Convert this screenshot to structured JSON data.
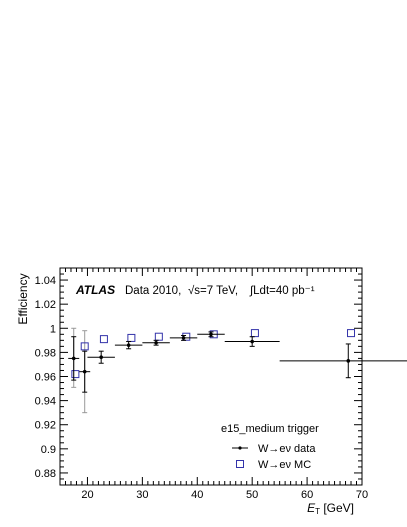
{
  "chart_data": {
    "type": "scatter",
    "title": "",
    "xlabel": "E_T [GeV]",
    "xlabel_parts": {
      "main": "E",
      "sub": "T",
      "unit": " [GeV]"
    },
    "ylabel": "Efficiency",
    "xlim": [
      15,
      70
    ],
    "ylim": [
      0.87,
      1.05
    ],
    "x_ticks": [
      20,
      30,
      40,
      50,
      60,
      70
    ],
    "y_ticks": [
      0.88,
      0.9,
      0.92,
      0.94,
      0.96,
      0.98,
      1,
      1.02,
      1.04
    ],
    "y_tick_labels": [
      "0.88",
      "0.9",
      "0.92",
      "0.94",
      "0.96",
      "0.98",
      "1",
      "1.02",
      "1.04"
    ],
    "grid": false,
    "legend_position": "bottom-right",
    "annotations": {
      "atlas": "ATLAS",
      "data_label": "Data 2010,",
      "energy": "√s=7 TeV,",
      "lumi": "∫Ldt=40 pb⁻¹",
      "trigger": "e15_medium trigger"
    },
    "series": [
      {
        "name": "W→eν data",
        "marker": "dot-with-errorbars",
        "color": "#000000",
        "points": [
          {
            "x": 17.5,
            "xerr": 1.0,
            "y": 0.975,
            "yerr": 0.018
          },
          {
            "x": 19.5,
            "xerr": 1.0,
            "y": 0.964,
            "yerr": 0.017
          },
          {
            "x": 22.5,
            "xerr": 2.5,
            "y": 0.976,
            "yerr": 0.005
          },
          {
            "x": 27.5,
            "xerr": 2.5,
            "y": 0.986,
            "yerr": 0.003
          },
          {
            "x": 32.5,
            "xerr": 2.5,
            "y": 0.988,
            "yerr": 0.002
          },
          {
            "x": 37.5,
            "xerr": 2.5,
            "y": 0.992,
            "yerr": 0.002
          },
          {
            "x": 42.5,
            "xerr": 2.5,
            "y": 0.995,
            "yerr": 0.002
          },
          {
            "x": 50.0,
            "xerr": 5.0,
            "y": 0.989,
            "yerr": 0.004
          },
          {
            "x": 67.5,
            "xerr": 12.5,
            "y": 0.973,
            "yerr": 0.014
          }
        ],
        "systematic_errors": [
          {
            "x": 17.5,
            "low": 0.951,
            "high": 1.0
          },
          {
            "x": 19.5,
            "low": 0.93,
            "high": 0.998
          }
        ]
      },
      {
        "name": "W→eν MC",
        "marker": "open-square",
        "color": "#3333aa",
        "points": [
          {
            "x": 17.8,
            "y": 0.962
          },
          {
            "x": 19.5,
            "y": 0.985
          },
          {
            "x": 23.0,
            "y": 0.991
          },
          {
            "x": 28.0,
            "y": 0.992
          },
          {
            "x": 33.0,
            "y": 0.993
          },
          {
            "x": 38.0,
            "y": 0.993
          },
          {
            "x": 43.0,
            "y": 0.995
          },
          {
            "x": 50.5,
            "y": 0.996
          },
          {
            "x": 68.0,
            "y": 0.996
          }
        ]
      }
    ]
  }
}
